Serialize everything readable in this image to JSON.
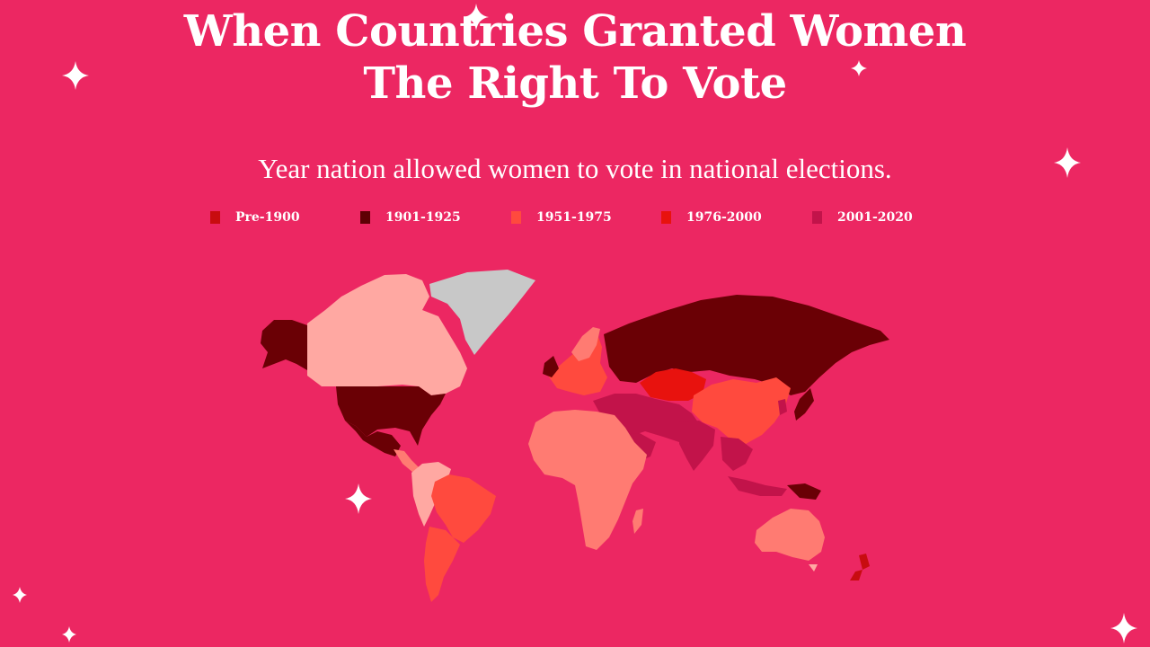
{
  "title_line1": "When Countries Granted Women",
  "title_line2": "The Right To Vote",
  "subtitle": "Year nation allowed women to vote in national elections.",
  "legend": [
    {
      "label": "Pre-1900",
      "color": "#c80c10"
    },
    {
      "label": "1901-1925",
      "color": "#5e0004"
    },
    {
      "label": "1951-1975",
      "color": "#ff4a3e"
    },
    {
      "label": "1976-2000",
      "color": "#e8120e"
    },
    {
      "label": "2001-2020",
      "color": "#c2134a"
    }
  ],
  "colors": {
    "background": "#ec2762",
    "early": "#6a0005",
    "mid_light": "#ffa8a2",
    "salmon": "#ff7b72",
    "greenland": "#c8c8c8"
  },
  "icons": [
    "sparkle-icon",
    "world-map"
  ]
}
